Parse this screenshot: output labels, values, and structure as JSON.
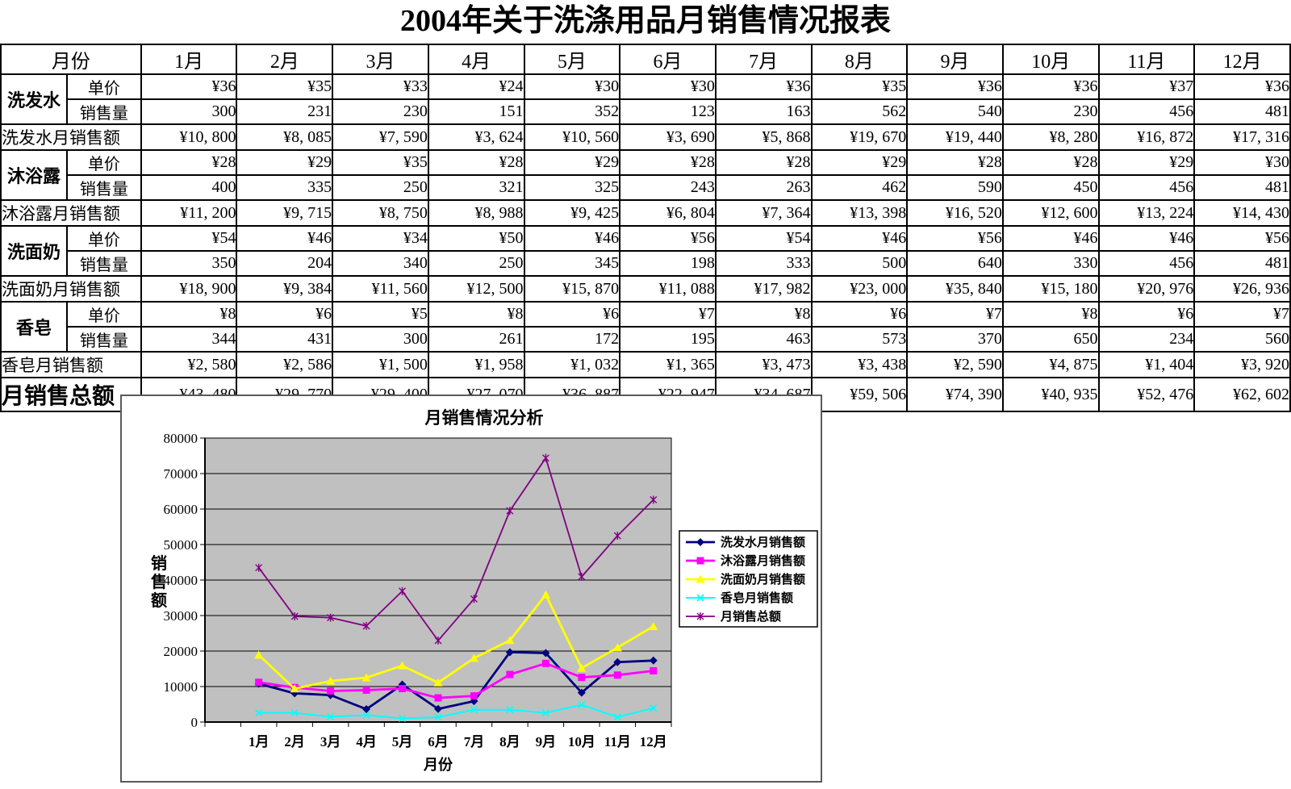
{
  "report": {
    "title": "2004年关于洗涤用品月销售情况报表",
    "table": {
      "corner_label": "月份",
      "months": [
        "1月",
        "2月",
        "3月",
        "4月",
        "5月",
        "6月",
        "7月",
        "8月",
        "9月",
        "10月",
        "11月",
        "12月"
      ],
      "groups": [
        {
          "product": "洗发水",
          "unit_price_label": "单价",
          "volume_label": "销售量",
          "sales_row_label": "洗发水月销售额",
          "unit_prices": [
            "¥36",
            "¥35",
            "¥33",
            "¥24",
            "¥30",
            "¥30",
            "¥36",
            "¥35",
            "¥36",
            "¥36",
            "¥37",
            "¥36"
          ],
          "volumes": [
            "300",
            "231",
            "230",
            "151",
            "352",
            "123",
            "163",
            "562",
            "540",
            "230",
            "456",
            "481"
          ],
          "sales": [
            "¥10, 800",
            "¥8, 085",
            "¥7, 590",
            "¥3, 624",
            "¥10, 560",
            "¥3, 690",
            "¥5, 868",
            "¥19, 670",
            "¥19, 440",
            "¥8, 280",
            "¥16, 872",
            "¥17, 316"
          ]
        },
        {
          "product": "沐浴露",
          "unit_price_label": "单价",
          "volume_label": "销售量",
          "sales_row_label": "沐浴露月销售额",
          "unit_prices": [
            "¥28",
            "¥29",
            "¥35",
            "¥28",
            "¥29",
            "¥28",
            "¥28",
            "¥29",
            "¥28",
            "¥28",
            "¥29",
            "¥30"
          ],
          "volumes": [
            "400",
            "335",
            "250",
            "321",
            "325",
            "243",
            "263",
            "462",
            "590",
            "450",
            "456",
            "481"
          ],
          "sales": [
            "¥11, 200",
            "¥9, 715",
            "¥8, 750",
            "¥8, 988",
            "¥9, 425",
            "¥6, 804",
            "¥7, 364",
            "¥13, 398",
            "¥16, 520",
            "¥12, 600",
            "¥13, 224",
            "¥14, 430"
          ]
        },
        {
          "product": "洗面奶",
          "unit_price_label": "单价",
          "volume_label": "销售量",
          "sales_row_label": "洗面奶月销售额",
          "unit_prices": [
            "¥54",
            "¥46",
            "¥34",
            "¥50",
            "¥46",
            "¥56",
            "¥54",
            "¥46",
            "¥56",
            "¥46",
            "¥46",
            "¥56"
          ],
          "volumes": [
            "350",
            "204",
            "340",
            "250",
            "345",
            "198",
            "333",
            "500",
            "640",
            "330",
            "456",
            "481"
          ],
          "sales": [
            "¥18, 900",
            "¥9, 384",
            "¥11, 560",
            "¥12, 500",
            "¥15, 870",
            "¥11, 088",
            "¥17, 982",
            "¥23, 000",
            "¥35, 840",
            "¥15, 180",
            "¥20, 976",
            "¥26, 936"
          ]
        },
        {
          "product": "香皂",
          "unit_price_label": "单价",
          "volume_label": "销售量",
          "sales_row_label": "香皂月销售额",
          "unit_prices": [
            "¥8",
            "¥6",
            "¥5",
            "¥8",
            "¥6",
            "¥7",
            "¥8",
            "¥6",
            "¥7",
            "¥8",
            "¥6",
            "¥7"
          ],
          "volumes": [
            "344",
            "431",
            "300",
            "261",
            "172",
            "195",
            "463",
            "573",
            "370",
            "650",
            "234",
            "560"
          ],
          "sales": [
            "¥2, 580",
            "¥2, 586",
            "¥1, 500",
            "¥1, 958",
            "¥1, 032",
            "¥1, 365",
            "¥3, 473",
            "¥3, 438",
            "¥2, 590",
            "¥4, 875",
            "¥1, 404",
            "¥3, 920"
          ]
        }
      ],
      "total_row_label": "月销售总额",
      "totals": [
        "¥43, 480",
        "¥29, 770",
        "¥29, 400",
        "¥27, 070",
        "¥36, 887",
        "¥22, 947",
        "¥34, 687",
        "¥59, 506",
        "¥74, 390",
        "¥40, 935",
        "¥52, 476",
        "¥62, 602"
      ]
    }
  },
  "chart_data": {
    "type": "line",
    "title": "月销售情况分析",
    "xlabel": "月份",
    "ylabel": "销售额",
    "categories": [
      "1月",
      "2月",
      "3月",
      "4月",
      "5月",
      "6月",
      "7月",
      "8月",
      "9月",
      "10月",
      "11月",
      "12月"
    ],
    "ylim": [
      0,
      80000
    ],
    "ytick_step": 10000,
    "grid": true,
    "plot_bg": "#C0C0C0",
    "legend_position": "right",
    "series": [
      {
        "name": "洗发水月销售额",
        "key": "shampoo",
        "color": "#000080",
        "marker": "diamond",
        "values": [
          10800,
          8085,
          7590,
          3624,
          10560,
          3690,
          5868,
          19670,
          19440,
          8280,
          16872,
          17316
        ]
      },
      {
        "name": "沐浴露月销售额",
        "key": "bodywash",
        "color": "#FF00FF",
        "marker": "square",
        "values": [
          11200,
          9715,
          8750,
          8988,
          9425,
          6804,
          7364,
          13398,
          16520,
          12600,
          13224,
          14430
        ]
      },
      {
        "name": "洗面奶月销售额",
        "key": "cleanser",
        "color": "#FFFF00",
        "marker": "triangle",
        "values": [
          18900,
          9384,
          11560,
          12500,
          15870,
          11088,
          17982,
          23000,
          35840,
          15180,
          20976,
          26936
        ]
      },
      {
        "name": "香皂月销售额",
        "key": "soap",
        "color": "#00FFFF",
        "marker": "x",
        "values": [
          2580,
          2586,
          1500,
          1958,
          1032,
          1365,
          3473,
          3438,
          2590,
          4875,
          1404,
          3920
        ]
      },
      {
        "name": "月销售总额",
        "key": "total",
        "color": "#800080",
        "marker": "star",
        "values": [
          43480,
          29770,
          29400,
          27070,
          36887,
          22947,
          34687,
          59506,
          74390,
          40935,
          52476,
          62602
        ]
      }
    ]
  }
}
